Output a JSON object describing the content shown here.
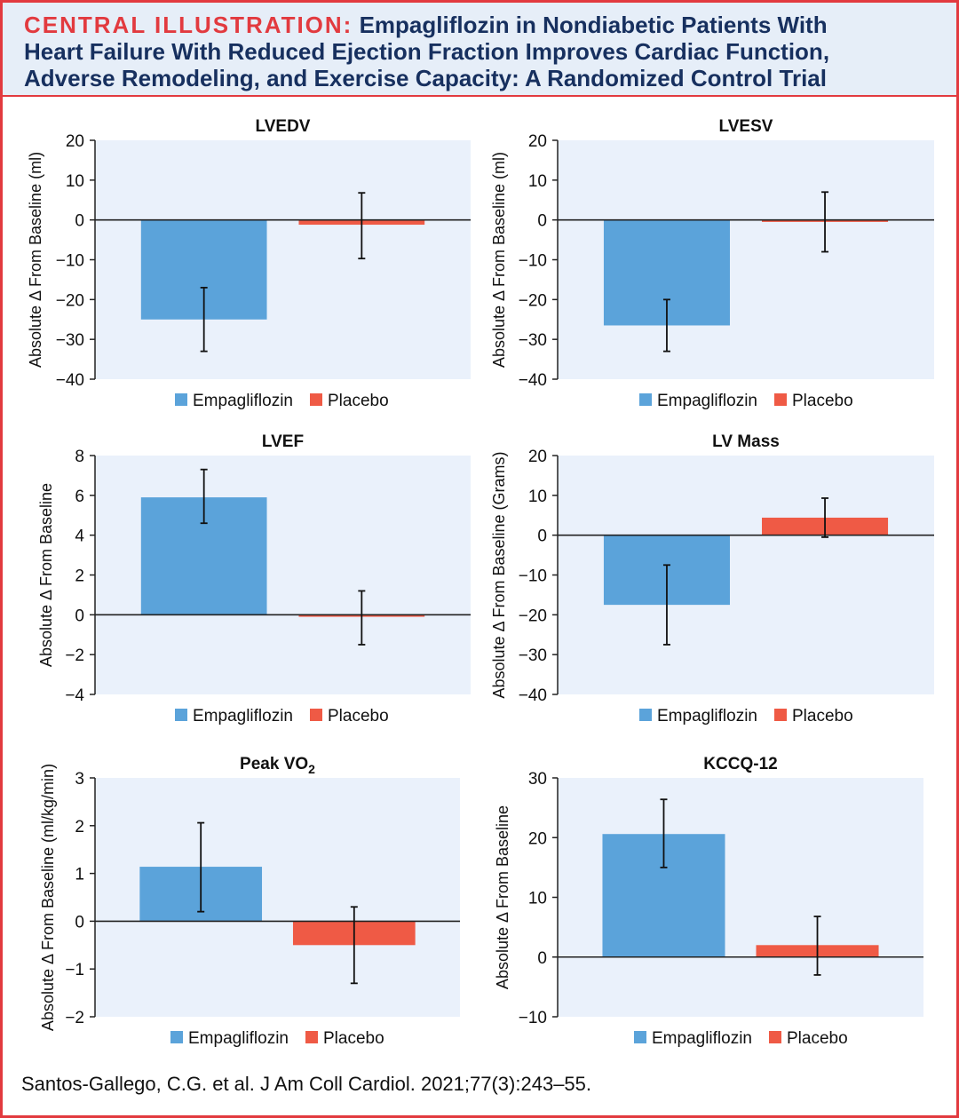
{
  "header": {
    "label": "CENTRAL ILLUSTRATION:",
    "line1": "Empagliflozin in Nondiabetic Patients With",
    "line2": "Heart Failure With Reduced Ejection Fraction Improves Cardiac Function,",
    "line3": "Adverse Remodeling, and Exercise Capacity: A Randomized Control Trial"
  },
  "citation": "Santos-Gallego, C.G. et al. J Am Coll Cardiol. 2021;77(3):243–55.",
  "colors": {
    "empagliflozin": "#5ba3da",
    "placebo": "#ef5a45",
    "plot_bg": "#eaf1fb",
    "accent": "#e23a3f"
  },
  "legend": {
    "empagliflozin": "Empagliflozin",
    "placebo": "Placebo"
  },
  "chart_data": [
    {
      "type": "bar",
      "title": "LVEDV",
      "ylabel": "Absolute Δ From Baseline (ml)",
      "ylim": [
        -40,
        20
      ],
      "yticks": [
        20,
        10,
        0,
        -10,
        -20,
        -30,
        -40
      ],
      "categories": [
        "Empagliflozin",
        "Placebo"
      ],
      "values": [
        -25,
        -1.2
      ],
      "errors": [
        [
          -33,
          -17
        ],
        [
          -9.7,
          6.8
        ]
      ]
    },
    {
      "type": "bar",
      "title": "LVESV",
      "ylabel": "Absolute Δ From Baseline (ml)",
      "ylim": [
        -40,
        20
      ],
      "yticks": [
        20,
        10,
        0,
        -10,
        -20,
        -30,
        -40
      ],
      "categories": [
        "Empagliflozin",
        "Placebo"
      ],
      "values": [
        -26.5,
        -0.5
      ],
      "errors": [
        [
          -33,
          -20
        ],
        [
          -8,
          7
        ]
      ]
    },
    {
      "type": "bar",
      "title": "LVEF",
      "ylabel": "Absolute Δ From Baseline",
      "ylim": [
        -4,
        8
      ],
      "yticks": [
        8,
        6,
        4,
        2,
        0,
        -2,
        -4
      ],
      "categories": [
        "Empagliflozin",
        "Placebo"
      ],
      "values": [
        5.9,
        -0.1
      ],
      "errors": [
        [
          4.6,
          7.3
        ],
        [
          -1.5,
          1.2
        ]
      ]
    },
    {
      "type": "bar",
      "title": "LV Mass",
      "ylabel": "Absolute Δ From Baseline (Grams)",
      "ylim": [
        -40,
        20
      ],
      "yticks": [
        20,
        10,
        0,
        -10,
        -20,
        -30,
        -40
      ],
      "categories": [
        "Empagliflozin",
        "Placebo"
      ],
      "values": [
        -17.5,
        4.4
      ],
      "errors": [
        [
          -27.5,
          -7.5
        ],
        [
          -0.5,
          9.3
        ]
      ]
    },
    {
      "type": "bar",
      "title": "Peak VO",
      "title_sub": "2",
      "ylabel": "Absolute Δ From Baseline (ml/kg/min)",
      "ylim": [
        -2,
        3
      ],
      "yticks": [
        3,
        2,
        1,
        0,
        -1,
        -2
      ],
      "categories": [
        "Empagliflozin",
        "Placebo"
      ],
      "values": [
        1.14,
        -0.5
      ],
      "errors": [
        [
          0.2,
          2.06
        ],
        [
          -1.3,
          0.3
        ]
      ]
    },
    {
      "type": "bar",
      "title": "KCCQ-12",
      "ylabel": "Absolute Δ From Baseline",
      "ylim": [
        -10,
        30
      ],
      "yticks": [
        30,
        20,
        10,
        0,
        -10
      ],
      "categories": [
        "Empagliflozin",
        "Placebo"
      ],
      "values": [
        20.6,
        2
      ],
      "errors": [
        [
          15,
          26.4
        ],
        [
          -3,
          6.8
        ]
      ]
    }
  ]
}
